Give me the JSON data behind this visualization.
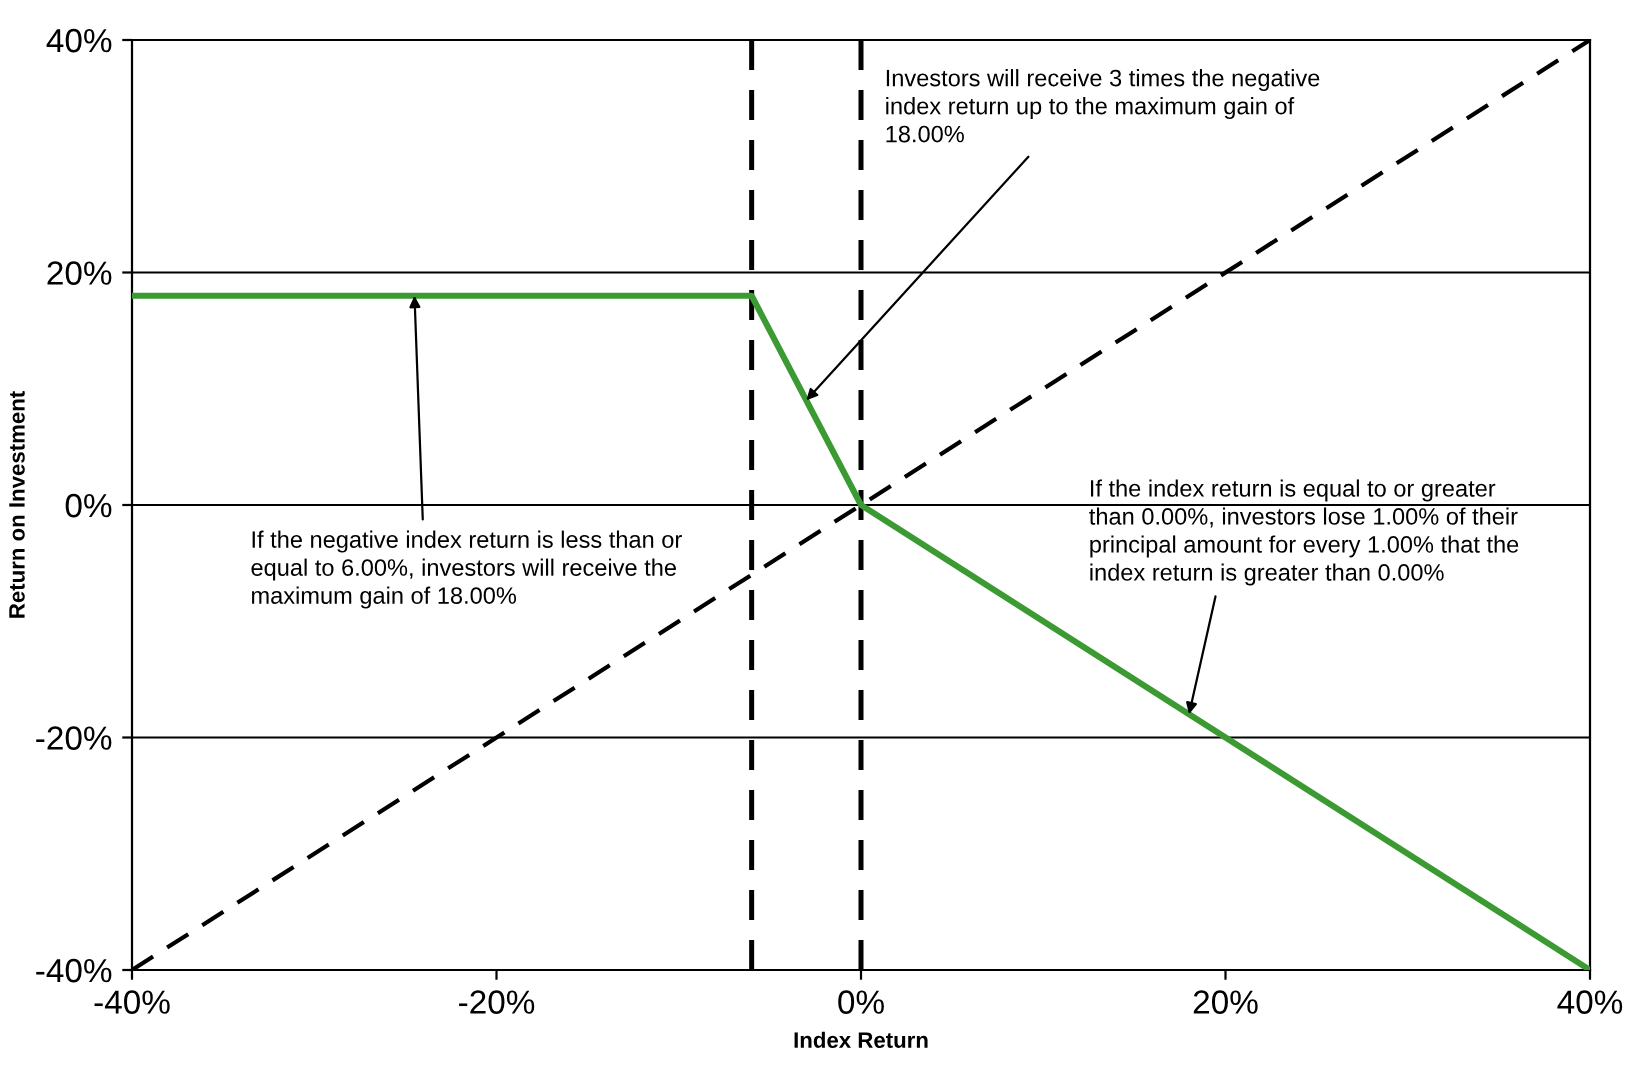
{
  "chart_data": {
    "type": "line",
    "xlabel": "Index Return",
    "ylabel": "Return on Investment",
    "series": [
      {
        "x": [
          -40,
          40
        ],
        "values": [
          -40,
          40
        ],
        "color": "#000000",
        "line_style": "dashed"
      },
      {
        "x": [
          -40,
          -6,
          0,
          40
        ],
        "values": [
          18,
          18,
          0,
          -40
        ],
        "color": "#3c9a32",
        "line_style": "solid"
      }
    ],
    "xlim": [
      -40,
      40
    ],
    "ylim": [
      -40,
      40
    ],
    "xticks": [
      {
        "value": -40,
        "label": "-40%"
      },
      {
        "value": -20,
        "label": "-20%"
      },
      {
        "value": 0,
        "label": "0%"
      },
      {
        "value": 20,
        "label": "20%"
      },
      {
        "value": 40,
        "label": "40%"
      }
    ],
    "yticks": [
      {
        "value": -40,
        "label": "-40%"
      },
      {
        "value": -20,
        "label": "-20%"
      },
      {
        "value": 0,
        "label": "0%"
      },
      {
        "value": 20,
        "label": "20%"
      },
      {
        "value": 40,
        "label": "40%"
      }
    ],
    "grid": "y",
    "legend": false,
    "marker": "none",
    "ref_lines": [
      {
        "axis": "x",
        "value": -6,
        "color": "#000000",
        "line_style": "dashed"
      },
      {
        "axis": "x",
        "value": 0,
        "color": "#000000",
        "line_style": "dashed"
      }
    ],
    "annotations": [
      {
        "text": "Investors will receive 3 times the negative\nindex return up to the maximum gain of\n18.00%",
        "x": -3,
        "y": 9
      },
      {
        "text": "If the negative index return is less than or\nequal to 6.00%, investors will receive the\nmaximum gain of 18.00%",
        "x": -24.5,
        "y": 18
      },
      {
        "text": "If the index return is equal to or greater\nthan 0.00%, investors lose 1.00% of their\nprincipal amount for every 1.00% that the\nindex return is greater than 0.00%",
        "x": 18,
        "y": -18
      }
    ]
  }
}
